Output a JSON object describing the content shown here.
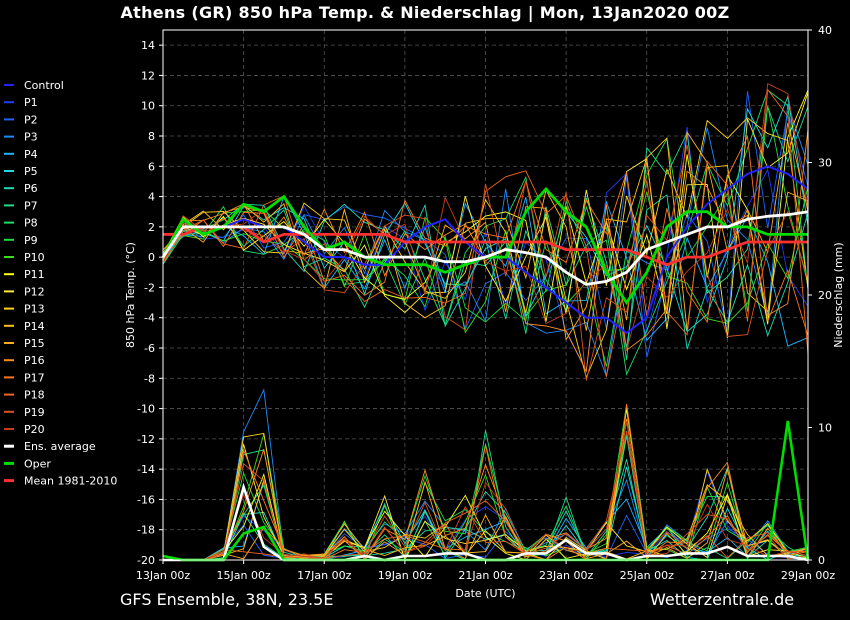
{
  "chart_data": {
    "type": "line",
    "title": "Athens  (GR)  850 hPa Temp. & Niederschlag | Mon, 13Jan2020 00Z",
    "xlabel": "Date (UTC)",
    "ylabel": "850 hPa Temp. (°C)",
    "ylabel_right": "Niederschlag (mm)",
    "x_ticks": [
      "13Jan 00z",
      "15Jan 00z",
      "17Jan 00z",
      "19Jan 00z",
      "21Jan 00z",
      "23Jan 00z",
      "25Jan 00z",
      "27Jan 00z",
      "29Jan 00z"
    ],
    "ylim": [
      -20,
      15
    ],
    "y_ticks": [
      -20,
      -18,
      -16,
      -14,
      -12,
      -10,
      -8,
      -6,
      -4,
      -2,
      0,
      2,
      4,
      6,
      8,
      10,
      12,
      14
    ],
    "ylim_right": [
      0,
      40
    ],
    "y_ticks_right": [
      0,
      10,
      20,
      30,
      40
    ],
    "x_range_days": [
      0,
      16
    ],
    "grid": true,
    "legend_position": "left",
    "series": [
      {
        "name": "Control",
        "color": "#2222ff"
      },
      {
        "name": "P1",
        "color": "#1e3cff"
      },
      {
        "name": "P2",
        "color": "#1e64ff"
      },
      {
        "name": "P3",
        "color": "#1e8cff"
      },
      {
        "name": "P4",
        "color": "#1eb4ff"
      },
      {
        "name": "P5",
        "color": "#1edcdc"
      },
      {
        "name": "P6",
        "color": "#1edcb4"
      },
      {
        "name": "P7",
        "color": "#1edc8c"
      },
      {
        "name": "P8",
        "color": "#1edc64"
      },
      {
        "name": "P9",
        "color": "#1edc3c"
      },
      {
        "name": "P10",
        "color": "#3cdc1e"
      },
      {
        "name": "P11",
        "color": "#ffff1e"
      },
      {
        "name": "P12",
        "color": "#ffeb3c"
      },
      {
        "name": "P13",
        "color": "#ffd21e"
      },
      {
        "name": "P14",
        "color": "#ffbe1e"
      },
      {
        "name": "P15",
        "color": "#ffaa1e"
      },
      {
        "name": "P16",
        "color": "#ff8c1e"
      },
      {
        "name": "P17",
        "color": "#ff781e"
      },
      {
        "name": "P18",
        "color": "#f0641e"
      },
      {
        "name": "P19",
        "color": "#dc501e"
      },
      {
        "name": "P20",
        "color": "#c83c1e"
      },
      {
        "name": "Ens. average",
        "color": "#ffffff"
      },
      {
        "name": "Oper",
        "color": "#00dd00"
      },
      {
        "name": "Mean 1981-2010",
        "color": "#ff3030"
      }
    ],
    "temp_x_days": [
      0,
      0.5,
      1,
      1.5,
      2,
      2.5,
      3,
      3.5,
      4,
      4.5,
      5,
      5.5,
      6,
      6.5,
      7,
      7.5,
      8,
      8.5,
      9,
      9.5,
      10,
      10.5,
      11,
      11.5,
      12,
      12.5,
      13,
      13.5,
      14,
      14.5,
      15,
      15.5,
      16
    ],
    "ens_average": [
      0,
      2,
      2,
      2,
      2,
      2,
      2,
      1.5,
      0.5,
      0.5,
      0,
      0,
      0,
      0,
      -0.3,
      -0.3,
      0,
      0.5,
      0.3,
      0,
      -1,
      -1.8,
      -1.6,
      -1,
      0.5,
      1,
      1.5,
      2,
      2,
      2.5,
      2.7,
      2.8,
      3
    ],
    "oper": [
      0,
      2.5,
      1.5,
      2,
      3.5,
      3,
      4,
      2,
      0.5,
      1,
      0,
      -0.5,
      -0.5,
      -0.5,
      -1,
      -0.5,
      0,
      0,
      3,
      4.5,
      3,
      2,
      -1,
      -3,
      -1,
      2,
      3,
      3,
      2,
      2,
      1.5,
      1.5,
      1.5
    ],
    "mean_1981_2010": [
      1.5,
      1.5,
      2,
      2,
      2,
      1,
      1.5,
      1.5,
      1.5,
      1.5,
      1.5,
      1.5,
      1,
      1,
      1,
      1,
      1,
      1,
      1,
      1,
      0.5,
      0.5,
      0.5,
      0.5,
      0,
      -0.5,
      0,
      0,
      0.5,
      1,
      1,
      1,
      1
    ],
    "control": [
      0,
      2,
      2,
      2,
      2.5,
      2,
      2,
      1,
      0,
      0,
      -0.5,
      -0.5,
      1,
      2,
      2.5,
      1,
      0,
      0,
      -1,
      -2,
      -3,
      -4,
      -4,
      -5,
      -4,
      0,
      2,
      3.5,
      4.5,
      5.5,
      6,
      5.5,
      4.5
    ],
    "precip_x_days": [
      0,
      0.5,
      1,
      1.5,
      2,
      2.5,
      3,
      3.5,
      4,
      4.5,
      5,
      5.5,
      6,
      6.5,
      7,
      7.5,
      8,
      8.5,
      9,
      9.5,
      10,
      10.5,
      11,
      11.5,
      12,
      12.5,
      13,
      13.5,
      14,
      14.5,
      15,
      15.5,
      16
    ],
    "precip_ens_average_mm": [
      0,
      0,
      0,
      0,
      5.5,
      1,
      0,
      0,
      0,
      0,
      0.3,
      0,
      0.3,
      0.3,
      0.5,
      0.5,
      0,
      0,
      0.5,
      0.5,
      1.5,
      0.5,
      0.5,
      0,
      0.3,
      0.3,
      0.5,
      0.5,
      1,
      0.3,
      0.3,
      0.3,
      0
    ],
    "precip_oper_mm": [
      0.3,
      0,
      0,
      0,
      2,
      2.5,
      0,
      0,
      0,
      0,
      0,
      0,
      0,
      0,
      0,
      0,
      0,
      0,
      0,
      0,
      0,
      0,
      0,
      0,
      0,
      0,
      0,
      0,
      0,
      0,
      0,
      10.5,
      0
    ],
    "precip_max_member_mm": [
      0,
      0,
      0,
      1,
      10,
      14.5,
      1,
      0.5,
      0.5,
      3,
      1,
      5,
      2,
      7,
      3,
      5,
      10,
      4,
      1,
      2,
      5,
      1,
      3,
      12,
      1,
      3,
      2,
      7,
      8,
      2,
      3,
      1,
      1
    ]
  },
  "footer": {
    "left": "GFS Ensemble, 38N, 23.5E",
    "right": "Wetterzentrale.de"
  }
}
